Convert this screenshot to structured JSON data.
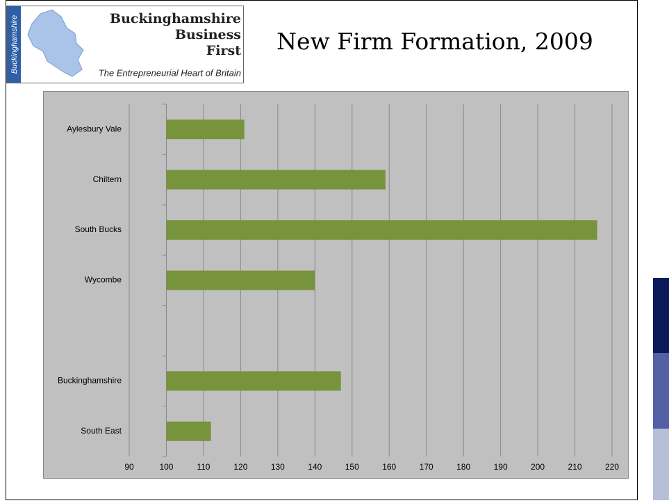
{
  "logo": {
    "side": "Buckinghamshire",
    "name": [
      "Buckinghamshire",
      "Business",
      "First"
    ],
    "tagline": "The Entrepreneurial Heart of Britain"
  },
  "chart_data": {
    "type": "hbar",
    "title": "New Firm Formation, 2009",
    "categories": [
      "Aylesbury Vale",
      "Chiltern",
      "South Bucks",
      "Wycombe",
      null,
      "Buckinghamshire",
      "South East"
    ],
    "values": [
      121,
      159,
      216,
      140,
      null,
      147,
      112
    ],
    "color": "#77933c",
    "origin": 100,
    "xlim": [
      90,
      220
    ],
    "xticks": [
      90,
      100,
      110,
      120,
      130,
      140,
      150,
      160,
      170,
      180,
      190,
      200,
      210,
      220
    ],
    "grid": true
  }
}
